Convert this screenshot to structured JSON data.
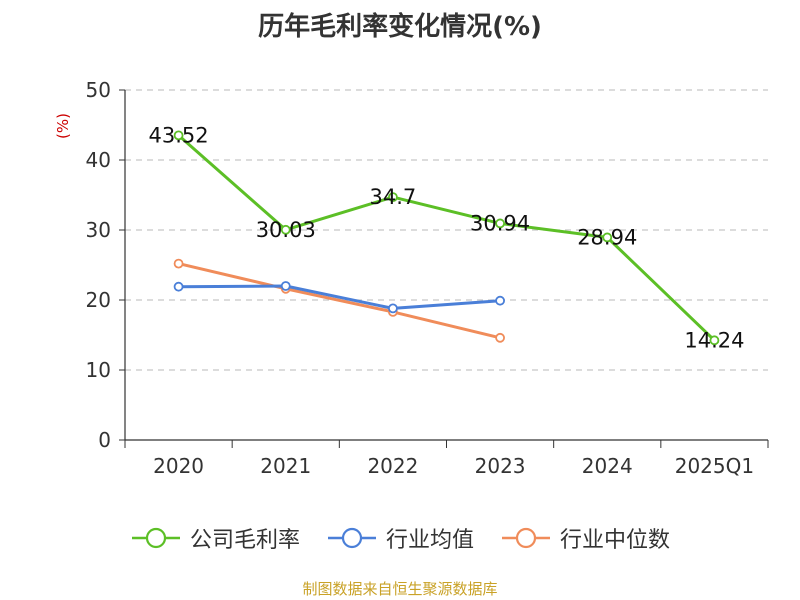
{
  "chart_data": {
    "type": "line",
    "title": "历年毛利率变化情况(%)",
    "ylabel": "(%)",
    "xlabel": "",
    "categories": [
      "2020",
      "2021",
      "2022",
      "2023",
      "2024",
      "2025Q1"
    ],
    "ylim": [
      0,
      50
    ],
    "yticks": [
      0,
      10,
      20,
      30,
      40,
      50
    ],
    "grid": true,
    "legend_position": "bottom",
    "series": [
      {
        "name": "公司毛利率",
        "color": "#5cbf26",
        "values": [
          43.52,
          30.03,
          34.7,
          30.94,
          28.94,
          14.24
        ],
        "data_labels": [
          "43.52",
          "30.03",
          "34.7",
          "30.94",
          "28.94",
          "14.24"
        ]
      },
      {
        "name": "行业均值",
        "color": "#4a7fd8",
        "values": [
          21.9,
          22.0,
          18.8,
          19.9,
          null,
          null
        ]
      },
      {
        "name": "行业中位数",
        "color": "#f08c5a",
        "values": [
          25.2,
          21.6,
          18.3,
          14.6,
          null,
          null
        ]
      }
    ]
  },
  "source": "制图数据来自恒生聚源数据库"
}
